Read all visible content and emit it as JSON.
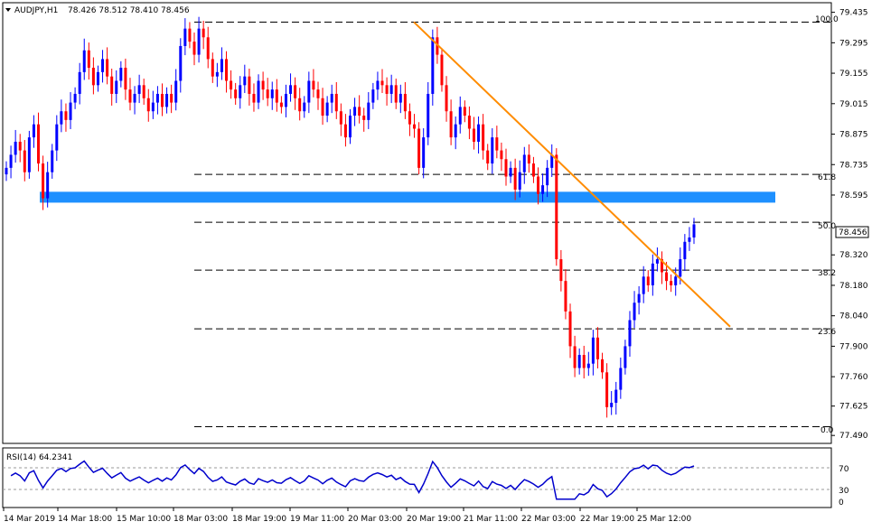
{
  "header": {
    "symbol": "AUDJPY,H1",
    "ohlc": "78.426 78.512 78.410 78.456"
  },
  "rsi_panel": {
    "label": "RSI(14) 64.2341",
    "levels": [
      "70",
      "30",
      "0"
    ]
  },
  "current_price_label": "78.456",
  "fib_labels": [
    "100.0",
    "61.8",
    "50.0",
    "38.2",
    "23.6",
    "0.0"
  ],
  "chart_data": [
    {
      "type": "candlestick",
      "title": "AUDJPY,H1",
      "y_ticks": [
        "79.435",
        "79.295",
        "79.155",
        "79.015",
        "78.875",
        "78.735",
        "78.595",
        "78.320",
        "78.180",
        "78.040",
        "77.900",
        "77.760",
        "77.625",
        "77.490"
      ],
      "x_ticks": [
        "14 Mar 2019",
        "14 Mar 18:00",
        "15 Mar 10:00",
        "18 Mar 03:00",
        "18 Mar 19:00",
        "19 Mar 11:00",
        "20 Mar 03:00",
        "20 Mar 19:00",
        "21 Mar 11:00",
        "22 Mar 03:00",
        "22 Mar 19:00",
        "25 Mar 12:00"
      ],
      "ylim": [
        77.47,
        79.45
      ],
      "current_price": 78.456,
      "fibonacci": {
        "levels": [
          {
            "label": "100.0",
            "price": 79.39
          },
          {
            "label": "61.8",
            "price": 78.69
          },
          {
            "label": "50.0",
            "price": 78.47
          },
          {
            "label": "38.2",
            "price": 78.25
          },
          {
            "label": "23.6",
            "price": 77.98
          },
          {
            "label": "0.0",
            "price": 77.53
          }
        ]
      },
      "support_zone": {
        "from": 78.56,
        "to": 78.61,
        "color": "#1e90ff"
      },
      "trendline": {
        "color": "#ff8c00",
        "start_price": 79.39,
        "end_price": 77.99
      },
      "colors": {
        "bull": "#0000ff",
        "bear": "#ff0000"
      },
      "series": [
        {
          "values_close": [
            78.72,
            78.78,
            78.84,
            78.8,
            78.7,
            78.86,
            78.92,
            78.74,
            78.58,
            78.7,
            78.8,
            78.92,
            78.98,
            78.94,
            79.02,
            79.06,
            79.16,
            79.26,
            79.18,
            79.1,
            79.16,
            79.22,
            79.14,
            79.06,
            79.12,
            79.18,
            79.08,
            79.02,
            79.06,
            79.1,
            79.04,
            78.98,
            79.02,
            79.06,
            79.0,
            79.06,
            79.02,
            79.12,
            79.28,
            79.36,
            79.3,
            79.24,
            79.36,
            79.32,
            79.22,
            79.14,
            79.16,
            79.22,
            79.12,
            79.08,
            79.04,
            79.1,
            79.14,
            79.06,
            79.02,
            79.12,
            79.08,
            79.04,
            79.08,
            79.02,
            79.0,
            79.06,
            79.1,
            79.04,
            78.98,
            79.02,
            79.12,
            79.08,
            79.04,
            78.96,
            79.02,
            79.06,
            78.98,
            78.92,
            78.86,
            78.96,
            79.0,
            78.96,
            78.94,
            79.02,
            79.08,
            79.12,
            79.1,
            79.06,
            79.1,
            79.02,
            79.06,
            78.98,
            78.92,
            78.9,
            78.72,
            78.86,
            79.06,
            79.32,
            79.24,
            79.1,
            78.98,
            78.86,
            78.92,
            79.0,
            78.96,
            78.9,
            78.84,
            78.92,
            78.8,
            78.74,
            78.86,
            78.8,
            78.76,
            78.68,
            78.72,
            78.62,
            78.7,
            78.78,
            78.74,
            78.68,
            78.6,
            78.64,
            78.72,
            78.78,
            78.3,
            78.2,
            78.06,
            77.9,
            77.8,
            77.86,
            77.8,
            77.82,
            77.94,
            77.84,
            77.78,
            77.62,
            77.64,
            77.7,
            77.8,
            77.9,
            78.02,
            78.1,
            78.14,
            78.22,
            78.18,
            78.28,
            78.3,
            78.24,
            78.2,
            78.18,
            78.22,
            78.3,
            78.38,
            78.4,
            78.46
          ],
          "name": ""
        }
      ],
      "rsi": {
        "label": "RSI(14)",
        "value": 64.2341,
        "levels": [
          70,
          30,
          0
        ]
      }
    }
  ]
}
